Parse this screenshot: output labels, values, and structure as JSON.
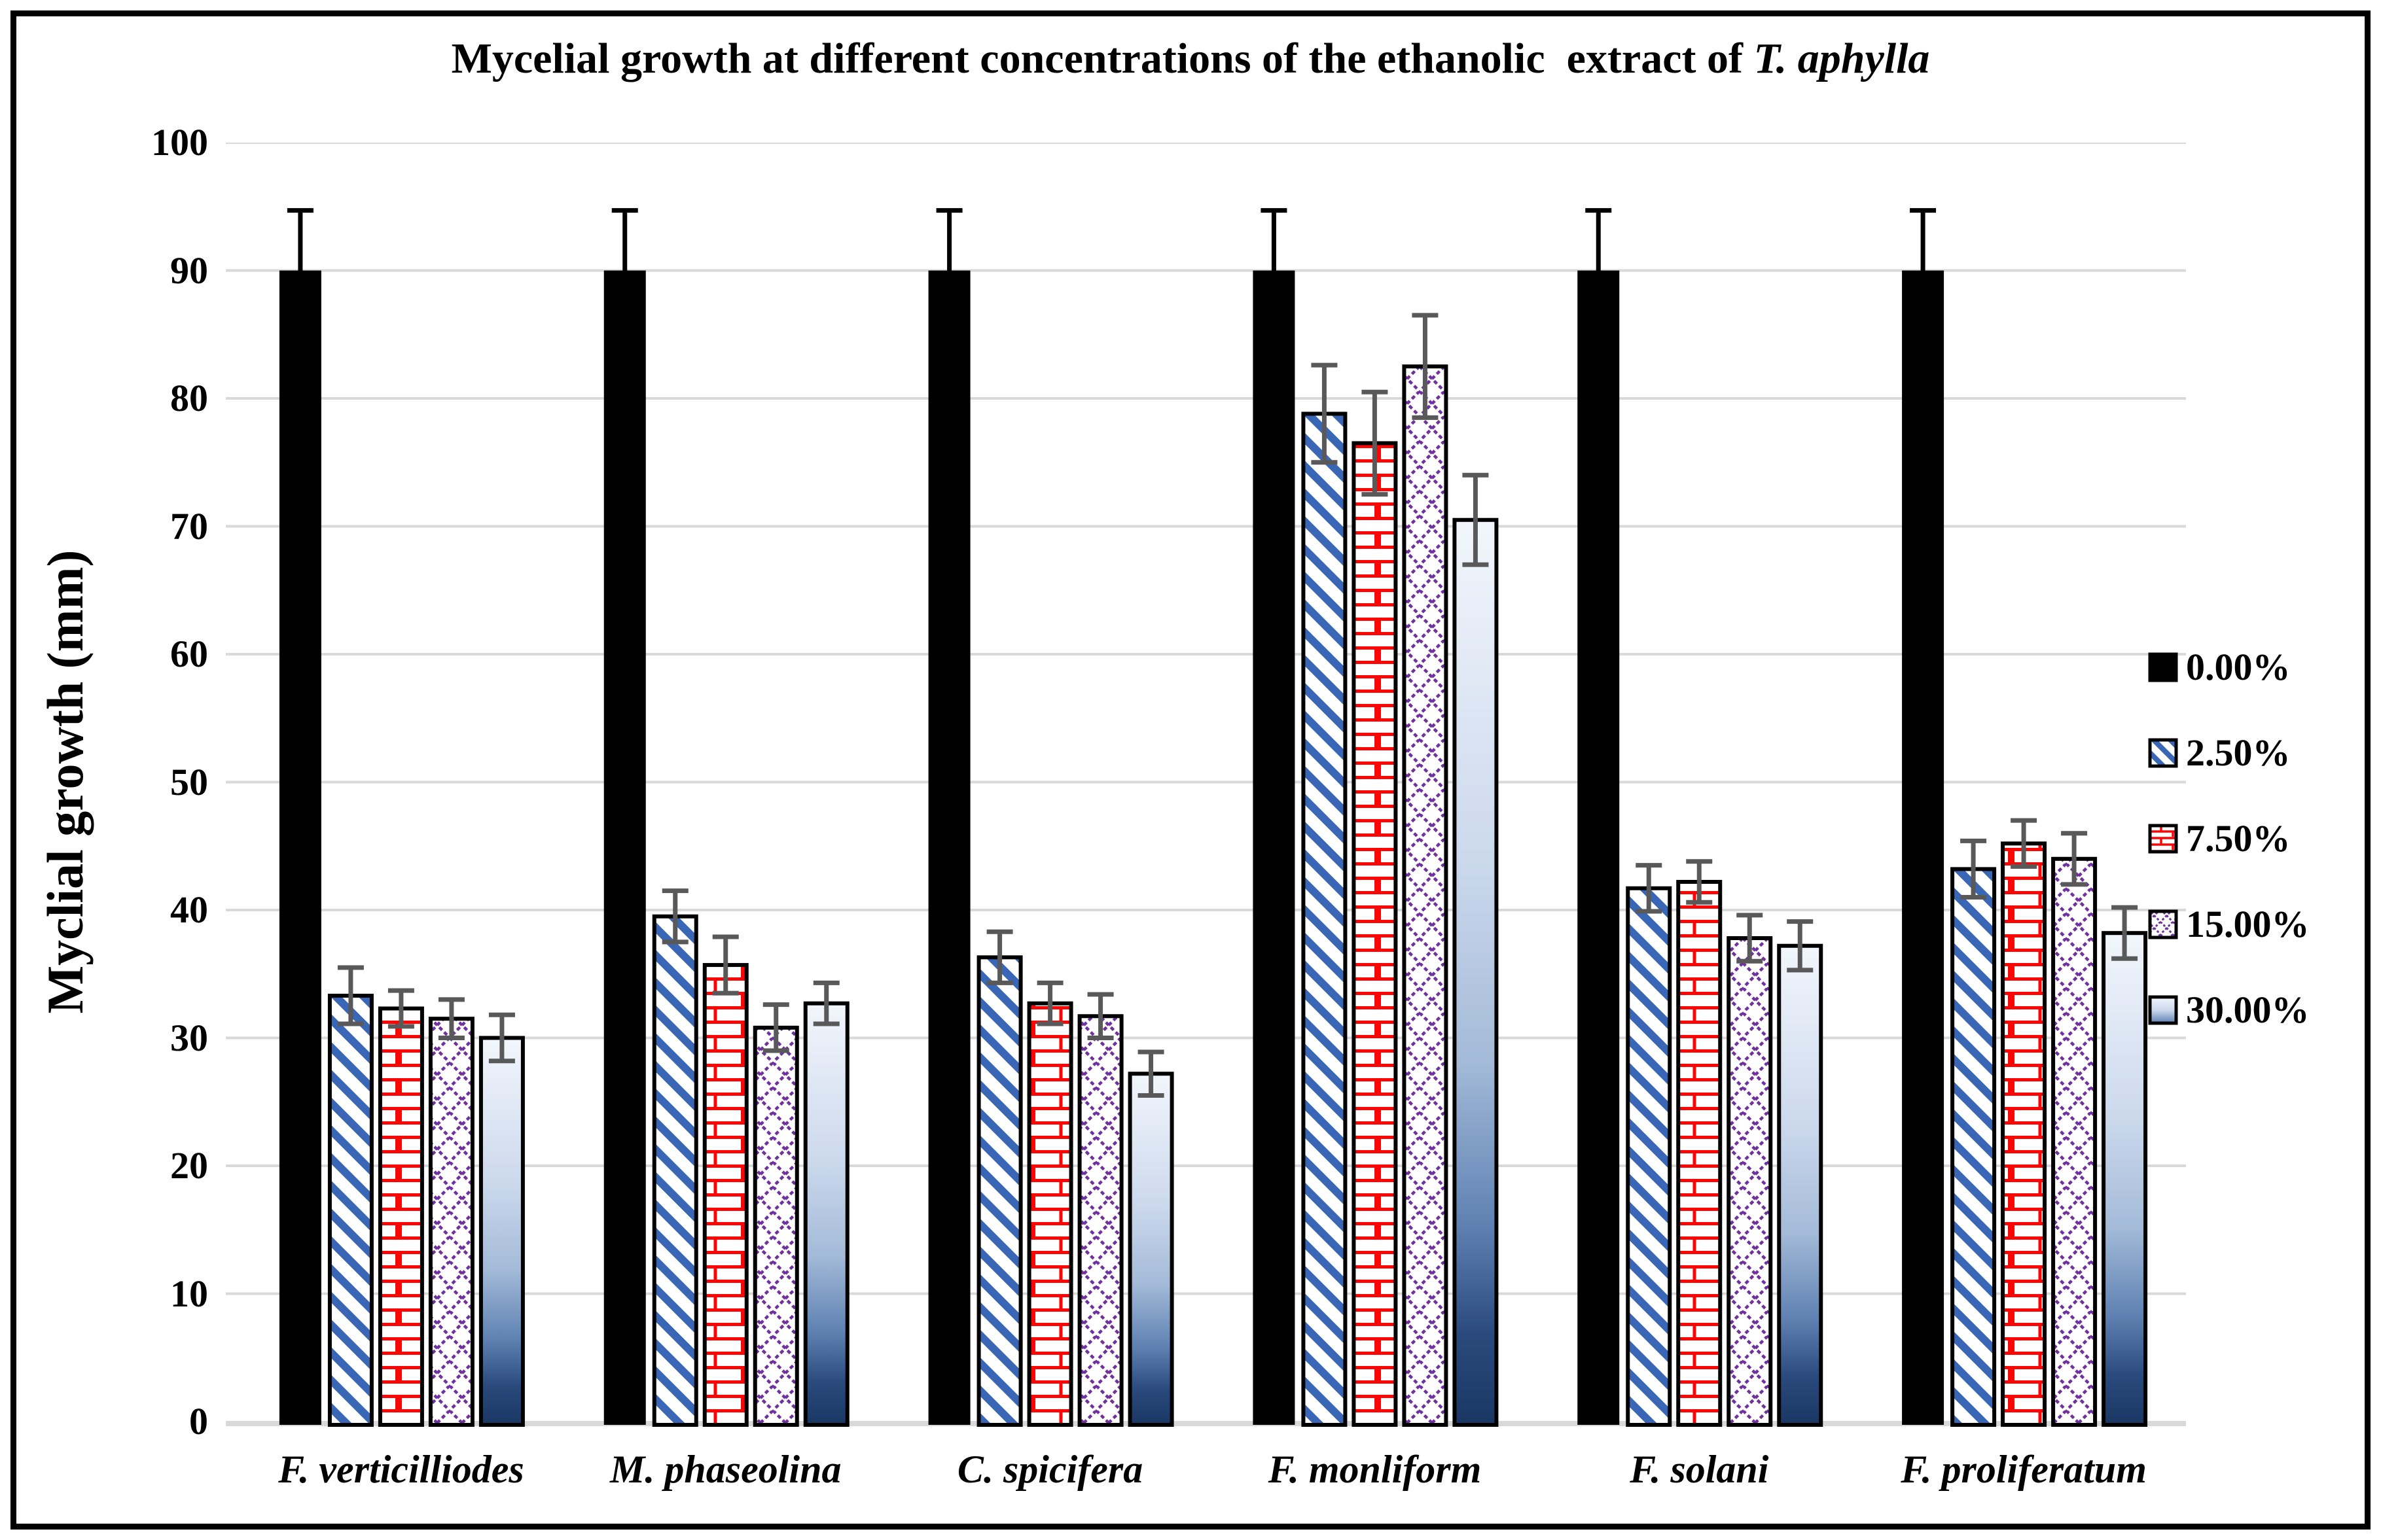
{
  "title": {
    "text": "Mycelial growth at different concentrations of the ethanolic  extract of ",
    "emphasis": "T. aphylla"
  },
  "y_axis": {
    "label": "Myclial growth (mm)",
    "ticks": [
      0,
      10,
      20,
      30,
      40,
      50,
      60,
      70,
      80,
      90,
      100
    ]
  },
  "chart_data": {
    "type": "bar",
    "title": "Mycelial growth at different concentrations of the ethanolic  extract of T. aphylla",
    "xlabel": "",
    "ylabel": "Myclial growth (mm)",
    "ylim": [
      0,
      100
    ],
    "ytick_step": 10,
    "grid": true,
    "legend_position": "right",
    "categories": [
      "F. verticilliodes",
      "M. phaseolina",
      "C. spicifera",
      "F. monliform",
      "F. solani",
      "F. proliferatum"
    ],
    "series": [
      {
        "name": "0.00%",
        "style": "solid-black",
        "values": [
          90,
          90,
          90,
          90,
          90,
          90
        ],
        "errors": [
          4.7,
          4.7,
          4.7,
          4.7,
          4.7,
          4.7
        ]
      },
      {
        "name": "2.50%",
        "style": "blue-diagonal-stripes",
        "values": [
          33.3,
          39.5,
          36.3,
          78.8,
          41.7,
          43.2
        ],
        "errors": [
          2.2,
          2.0,
          2.0,
          3.8,
          1.8,
          2.2
        ]
      },
      {
        "name": "7.50%",
        "style": "red-brick",
        "values": [
          32.3,
          35.7,
          32.7,
          76.5,
          42.2,
          45.2
        ],
        "errors": [
          1.4,
          2.2,
          1.6,
          4.0,
          1.6,
          1.8
        ]
      },
      {
        "name": "15.00%",
        "style": "purple-diamond-lattice",
        "values": [
          31.5,
          30.8,
          31.7,
          82.5,
          37.8,
          44.0
        ],
        "errors": [
          1.5,
          1.8,
          1.7,
          4.0,
          1.8,
          2.0
        ]
      },
      {
        "name": "30.00%",
        "style": "blue-gradient",
        "values": [
          30.0,
          32.7,
          27.2,
          70.5,
          37.2,
          38.2
        ],
        "errors": [
          1.8,
          1.6,
          1.7,
          3.5,
          1.9,
          2.0
        ]
      }
    ],
    "colors": {
      "stripe_blue": "#3A67B5",
      "brick_red": "#FB0505",
      "diamond_purple": "#7030A0",
      "gradient_top": "#F2F6FC",
      "gradient_mid": "#CBD8EC",
      "gradient_dark": "#1A3763",
      "grid": "#D9D9D9",
      "error_bar": "#595959",
      "bar_border": "#000000"
    }
  }
}
